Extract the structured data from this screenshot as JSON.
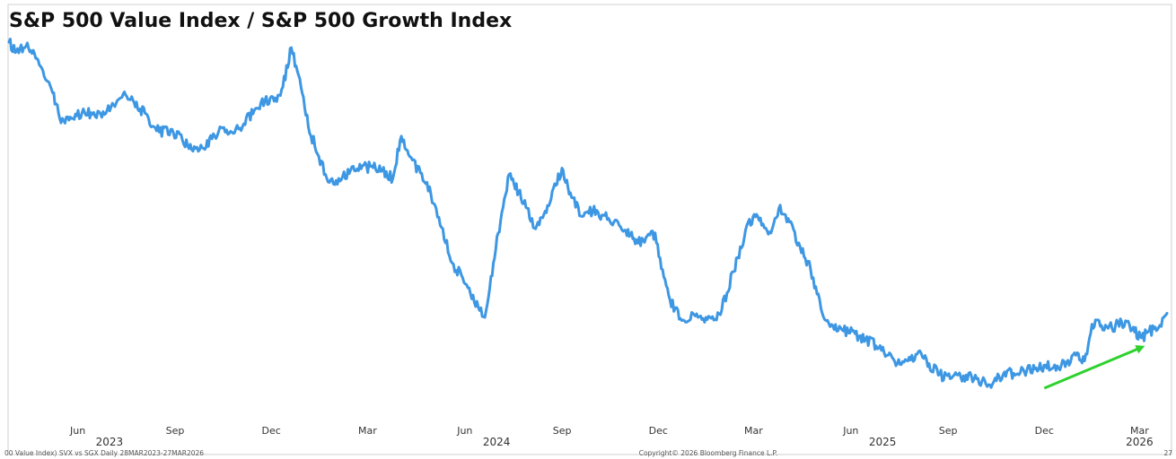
{
  "chart_data": {
    "type": "line",
    "title": "S&P 500 Value Index / S&P 500 Growth Index",
    "xlabel": "",
    "ylabel": "",
    "x_range": [
      "2023-03-28",
      "2026-03-27"
    ],
    "grid": false,
    "legend": "none",
    "x_ticks": [
      {
        "label": "Jun",
        "date": "2023-06-01"
      },
      {
        "label": "Sep",
        "date": "2023-09-01"
      },
      {
        "label": "Dec",
        "date": "2023-12-01"
      },
      {
        "label": "Mar",
        "date": "2024-03-01"
      },
      {
        "label": "Jun",
        "date": "2024-06-01"
      },
      {
        "label": "Sep",
        "date": "2024-09-01"
      },
      {
        "label": "Dec",
        "date": "2024-12-01"
      },
      {
        "label": "Mar",
        "date": "2025-03-01"
      },
      {
        "label": "Jun",
        "date": "2025-06-01"
      },
      {
        "label": "Sep",
        "date": "2025-09-01"
      },
      {
        "label": "Dec",
        "date": "2025-12-01"
      },
      {
        "label": "Mar",
        "date": "2026-03-01"
      }
    ],
    "year_labels": [
      {
        "label": "2023",
        "date": "2023-07-01"
      },
      {
        "label": "2024",
        "date": "2024-07-01"
      },
      {
        "label": "2025",
        "date": "2025-07-01"
      },
      {
        "label": "2026",
        "date": "2026-03-01"
      }
    ],
    "series": [
      {
        "color": "#3d97e3",
        "points": [
          [
            "2023-03-28",
            0.97
          ],
          [
            "2023-04-04",
            0.963
          ],
          [
            "2023-04-12",
            0.966
          ],
          [
            "2023-04-20",
            0.964
          ],
          [
            "2023-04-28",
            0.951
          ],
          [
            "2023-05-06",
            0.938
          ],
          [
            "2023-05-15",
            0.914
          ],
          [
            "2023-05-25",
            0.915
          ],
          [
            "2023-06-05",
            0.918
          ],
          [
            "2023-06-15",
            0.917
          ],
          [
            "2023-06-25",
            0.919
          ],
          [
            "2023-07-05",
            0.924
          ],
          [
            "2023-07-14",
            0.932
          ],
          [
            "2023-07-22",
            0.93
          ],
          [
            "2023-07-30",
            0.921
          ],
          [
            "2023-08-07",
            0.914
          ],
          [
            "2023-08-17",
            0.904
          ],
          [
            "2023-08-28",
            0.906
          ],
          [
            "2023-09-08",
            0.898
          ],
          [
            "2023-09-18",
            0.89
          ],
          [
            "2023-09-28",
            0.892
          ],
          [
            "2023-10-06",
            0.899
          ],
          [
            "2023-10-16",
            0.907
          ],
          [
            "2023-10-26",
            0.903
          ],
          [
            "2023-11-05",
            0.91
          ],
          [
            "2023-11-15",
            0.92
          ],
          [
            "2023-11-25",
            0.927
          ],
          [
            "2023-12-05",
            0.929
          ],
          [
            "2023-12-12",
            0.937
          ],
          [
            "2023-12-20",
            0.966
          ],
          [
            "2023-12-28",
            0.943
          ],
          [
            "2024-01-05",
            0.908
          ],
          [
            "2024-01-15",
            0.886
          ],
          [
            "2024-01-25",
            0.867
          ],
          [
            "2024-02-04",
            0.868
          ],
          [
            "2024-02-14",
            0.876
          ],
          [
            "2024-02-24",
            0.877
          ],
          [
            "2024-03-05",
            0.879
          ],
          [
            "2024-03-15",
            0.876
          ],
          [
            "2024-03-25",
            0.87
          ],
          [
            "2024-04-02",
            0.901
          ],
          [
            "2024-04-10",
            0.886
          ],
          [
            "2024-04-20",
            0.874
          ],
          [
            "2024-04-30",
            0.858
          ],
          [
            "2024-05-10",
            0.834
          ],
          [
            "2024-05-20",
            0.808
          ],
          [
            "2024-05-30",
            0.797
          ],
          [
            "2024-06-10",
            0.779
          ],
          [
            "2024-06-20",
            0.768
          ],
          [
            "2024-06-28",
            0.808
          ],
          [
            "2024-07-06",
            0.845
          ],
          [
            "2024-07-13",
            0.873
          ],
          [
            "2024-07-22",
            0.86
          ],
          [
            "2024-07-30",
            0.848
          ],
          [
            "2024-08-07",
            0.833
          ],
          [
            "2024-08-16",
            0.846
          ],
          [
            "2024-08-25",
            0.866
          ],
          [
            "2024-09-02",
            0.876
          ],
          [
            "2024-09-10",
            0.856
          ],
          [
            "2024-09-20",
            0.842
          ],
          [
            "2024-09-30",
            0.846
          ],
          [
            "2024-10-10",
            0.843
          ],
          [
            "2024-10-20",
            0.838
          ],
          [
            "2024-10-30",
            0.832
          ],
          [
            "2024-11-08",
            0.826
          ],
          [
            "2024-11-18",
            0.823
          ],
          [
            "2024-11-28",
            0.83
          ],
          [
            "2024-12-05",
            0.803
          ],
          [
            "2024-12-12",
            0.781
          ],
          [
            "2024-12-22",
            0.767
          ],
          [
            "2025-01-05",
            0.769
          ],
          [
            "2025-01-15",
            0.768
          ],
          [
            "2025-01-25",
            0.766
          ],
          [
            "2025-02-04",
            0.786
          ],
          [
            "2025-02-14",
            0.812
          ],
          [
            "2025-02-24",
            0.838
          ],
          [
            "2025-03-05",
            0.842
          ],
          [
            "2025-03-15",
            0.829
          ],
          [
            "2025-03-25",
            0.848
          ],
          [
            "2025-04-04",
            0.838
          ],
          [
            "2025-04-14",
            0.82
          ],
          [
            "2025-04-24",
            0.803
          ],
          [
            "2025-05-05",
            0.771
          ],
          [
            "2025-05-15",
            0.762
          ],
          [
            "2025-05-25",
            0.758
          ],
          [
            "2025-06-05",
            0.756
          ],
          [
            "2025-06-15",
            0.752
          ],
          [
            "2025-06-25",
            0.747
          ],
          [
            "2025-07-05",
            0.74
          ],
          [
            "2025-07-15",
            0.734
          ],
          [
            "2025-07-25",
            0.736
          ],
          [
            "2025-08-04",
            0.743
          ],
          [
            "2025-08-14",
            0.734
          ],
          [
            "2025-08-24",
            0.726
          ],
          [
            "2025-09-03",
            0.723
          ],
          [
            "2025-09-13",
            0.724
          ],
          [
            "2025-09-23",
            0.725
          ],
          [
            "2025-10-03",
            0.721
          ],
          [
            "2025-10-13",
            0.719
          ],
          [
            "2025-10-23",
            0.726
          ],
          [
            "2025-11-02",
            0.727
          ],
          [
            "2025-11-12",
            0.728
          ],
          [
            "2025-11-22",
            0.73
          ],
          [
            "2025-12-02",
            0.733
          ],
          [
            "2025-12-12",
            0.729
          ],
          [
            "2025-12-22",
            0.735
          ],
          [
            "2026-01-01",
            0.742
          ],
          [
            "2026-01-08",
            0.736
          ],
          [
            "2026-01-15",
            0.763
          ],
          [
            "2026-01-24",
            0.762
          ],
          [
            "2026-02-03",
            0.76
          ],
          [
            "2026-02-12",
            0.765
          ],
          [
            "2026-02-22",
            0.759
          ],
          [
            "2026-03-03",
            0.753
          ],
          [
            "2026-03-10",
            0.758
          ],
          [
            "2026-03-18",
            0.759
          ],
          [
            "2026-03-24",
            0.768
          ],
          [
            "2026-03-27",
            0.771
          ]
        ]
      }
    ],
    "annotation": {
      "type": "arrow",
      "color": "#2ed12e",
      "from": [
        "2025-12-01",
        0.716
      ],
      "to": [
        "2026-03-03",
        0.746
      ]
    },
    "footer_left": "00 Value Index) SVX vs SGX Daily 28MAR2023-27MAR2026",
    "footer_center": "Copyright© 2026 Bloomberg Finance L.P.",
    "footer_right": "27"
  }
}
